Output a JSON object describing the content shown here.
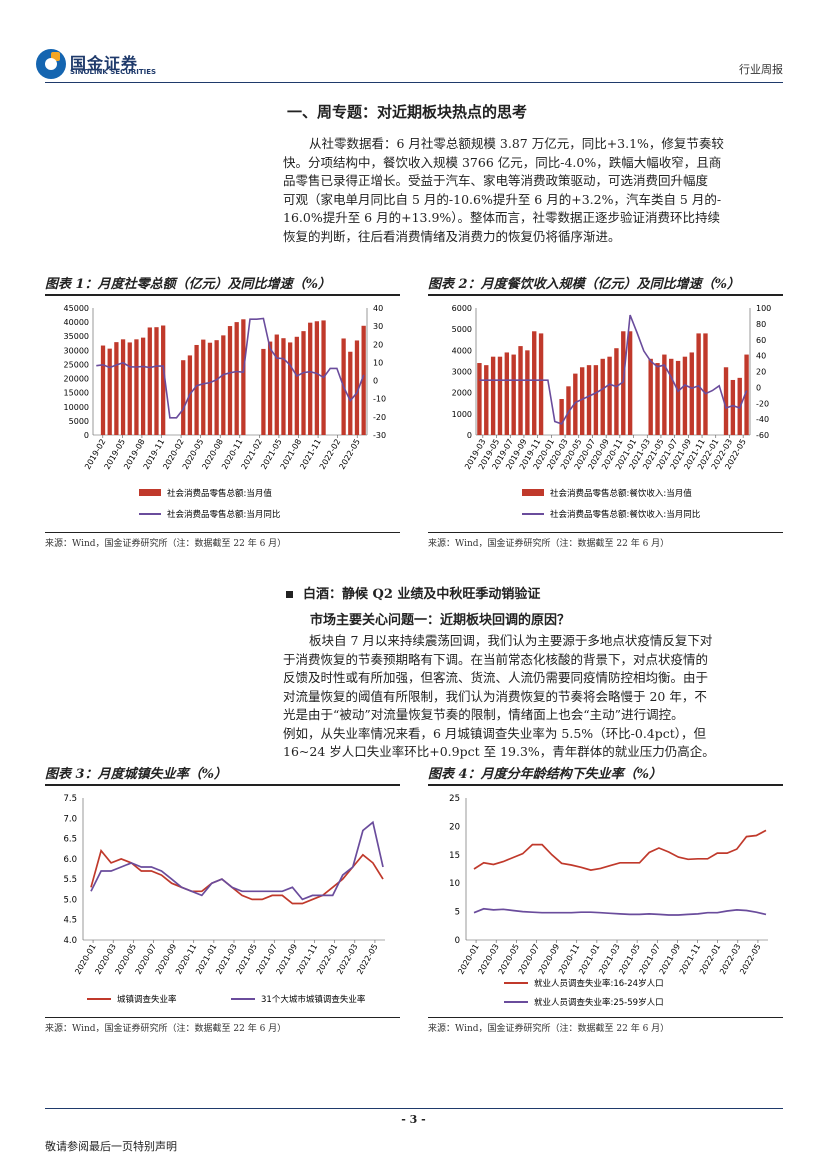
{
  "header": {
    "logo_cn": "国金证券",
    "logo_en": "SINOLINK SECURITIES",
    "report_type": "行业周报"
  },
  "section_title": "一、周专题：对近期板块热点的思考",
  "para1": [
    "从社零数据看：6 月社零总额规模 3.87 万亿元，同比+3.1%，修复节奏较",
    "快。分项结构中，餐饮收入规模 3766 亿元，同比-4.0%，跌幅大幅收窄，且商",
    "品零售已录得正增长。受益于汽车、家电等消费政策驱动，可选消费回升幅度",
    "可观（家电单月同比自 5 月的-10.6%提升至 6 月的+3.2%，汽车类自 5 月的-",
    "16.0%提升至 6 月的+13.9%）。整体而言，社零数据正逐步验证消费环比持续",
    "恢复的判断，往后看消费情绪及消费力的恢复仍将循序渐进。"
  ],
  "bullet_title": "白酒：静候 Q2 业绩及中秋旺季动销验证",
  "question_title": "市场主要关心问题一：近期板块回调的原因？",
  "para2": [
    "板块自 7 月以来持续震荡回调，我们认为主要源于多地点状疫情反复下对",
    "于消费恢复的节奏预期略有下调。在当前常态化核酸的背景下，对点状疫情的",
    "反馈及时性或有所加强，但客流、货流、人流仍需要同疫情防控相均衡。由于",
    "对流量恢复的阈值有所限制，我们认为消费恢复的节奏将会略慢于 20 年，不",
    "光是由于“被动”对流量恢复节奏的限制，情绪面上也会“主动”进行调控。",
    "例如，从失业率情况来看，6 月城镇调查失业率为 5.5%（环比-0.4pct），但",
    "16~24 岁人口失业率环比+0.9pct 至 19.3%，青年群体的就业压力仍高企。"
  ],
  "source_text": "来源：Wind，国金证券研究所（注：数据截至 22 年 6 月）",
  "footer": {
    "disclaimer": "敬请参阅最后一页特别声明",
    "page": "- 3 -"
  },
  "colors": {
    "bar": "#c0392b",
    "line": "#6a4c9c",
    "red_line": "#c0392b",
    "header_rule": "#1f3a6b"
  },
  "chart_data": [
    {
      "type": "bar",
      "title": "图表 1：月度社零总额（亿元）及同比增速（%）",
      "x_ticks": [
        "2019-02",
        "2019-05",
        "2019-08",
        "2019-11",
        "2020-02",
        "2020-05",
        "2020-08",
        "2020-11",
        "2021-02",
        "2021-05",
        "2021-08",
        "2021-11",
        "2022-02",
        "2022-05"
      ],
      "ylim_left": [
        0,
        45000
      ],
      "yticks_left": [
        "0",
        "5000",
        "10000",
        "15000",
        "20000",
        "25000",
        "30000",
        "35000",
        "40000",
        "45000"
      ],
      "ylim_right": [
        -30,
        40
      ],
      "yticks_right": [
        "-30",
        "-20",
        "-10",
        "0",
        "10",
        "20",
        "30",
        "40"
      ],
      "series": [
        {
          "name": "社会消费品零售总额:当月值",
          "axis": "left",
          "kind": "bar",
          "values": [
            null,
            31700,
            30600,
            32900,
            33900,
            32800,
            33900,
            34500,
            38100,
            38200,
            38800,
            null,
            null,
            26500,
            28200,
            31900,
            33800,
            32700,
            33600,
            35300,
            38600,
            40000,
            41000,
            null,
            null,
            30500,
            33100,
            35600,
            34300,
            32800,
            34800,
            36800,
            39800,
            40300,
            40600,
            null,
            null,
            34200,
            29500,
            33500,
            38700
          ],
          "categories": [
            "2019-02",
            "2019-03",
            "2019-04",
            "2019-05",
            "2019-06",
            "2019-07",
            "2019-08",
            "2019-09",
            "2019-10",
            "2019-11",
            "2019-12",
            "2020-01",
            "2020-02",
            "2020-03",
            "2020-04",
            "2020-05",
            "2020-06",
            "2020-07",
            "2020-08",
            "2020-09",
            "2020-10",
            "2020-11",
            "2020-12",
            "2021-01",
            "2021-02",
            "2021-03",
            "2021-04",
            "2021-05",
            "2021-06",
            "2021-07",
            "2021-08",
            "2021-09",
            "2021-10",
            "2021-11",
            "2021-12",
            "2022-01",
            "2022-02",
            "2022-03",
            "2022-04",
            "2022-05",
            "2022-06"
          ]
        },
        {
          "name": "社会消费品零售总额:当月同比",
          "axis": "right",
          "kind": "line",
          "values": [
            8.2,
            8.7,
            7.2,
            8.6,
            9.8,
            7.6,
            7.5,
            7.8,
            7.2,
            8.0,
            8.0,
            -20.5,
            -20.5,
            -15.8,
            -7.5,
            -2.8,
            -1.8,
            -1.1,
            0.5,
            3.3,
            4.3,
            5.0,
            4.6,
            33.8,
            33.8,
            34.2,
            17.7,
            12.4,
            12.1,
            8.5,
            2.5,
            4.4,
            4.9,
            3.9,
            1.7,
            6.7,
            6.7,
            -3.5,
            -11.1,
            -6.7,
            3.1
          ]
        }
      ],
      "legend": [
        "社会消费品零售总额:当月值",
        "社会消费品零售总额:当月同比"
      ]
    },
    {
      "type": "bar",
      "title": "图表 2：月度餐饮收入规模（亿元）及同比增速（%）",
      "x_ticks": [
        "2019-03",
        "2019-05",
        "2019-07",
        "2019-09",
        "2019-11",
        "2020-01",
        "2020-03",
        "2020-05",
        "2020-07",
        "2020-09",
        "2020-11",
        "2021-01",
        "2021-03",
        "2021-05",
        "2021-07",
        "2021-09",
        "2021-11",
        "2022-01",
        "2022-03",
        "2022-05"
      ],
      "ylim_left": [
        0,
        6000
      ],
      "yticks_left": [
        "0",
        "1000",
        "2000",
        "3000",
        "4000",
        "5000",
        "6000"
      ],
      "ylim_right": [
        -60,
        100
      ],
      "yticks_right": [
        "-60",
        "-40",
        "-20",
        "0",
        "20",
        "40",
        "60",
        "80",
        "100"
      ],
      "series": [
        {
          "name": "社会消费品零售总额:餐饮收入:当月值",
          "axis": "left",
          "kind": "bar",
          "values": [
            3400,
            3300,
            3700,
            3700,
            3900,
            3800,
            4200,
            4000,
            4900,
            4800,
            null,
            null,
            1700,
            2300,
            2900,
            3200,
            3300,
            3300,
            3600,
            3700,
            4100,
            4900,
            4900,
            null,
            null,
            3600,
            3400,
            3800,
            3600,
            3500,
            3700,
            3900,
            4800,
            4800,
            null,
            null,
            3200,
            2600,
            2700,
            3800
          ]
        },
        {
          "name": "社会消费品零售总额:餐饮收入:当月同比",
          "axis": "right",
          "kind": "line",
          "values": [
            9,
            9,
            9,
            9,
            9,
            9,
            9,
            9,
            9,
            9,
            9,
            -43,
            -46,
            -31,
            -19,
            -15,
            -11,
            -7,
            -2,
            4,
            1,
            7,
            91,
            69,
            46,
            33,
            26,
            28,
            13,
            -5,
            3,
            -1,
            2,
            -8,
            -4,
            2,
            -26,
            -23,
            -26,
            -4
          ]
        }
      ],
      "legend": [
        "社会消费品零售总额:餐饮收入:当月值",
        "社会消费品零售总额:餐饮收入:当月同比"
      ]
    },
    {
      "type": "line",
      "title": "图表 3：月度城镇失业率（%）",
      "x_ticks": [
        "2020-01",
        "2020-03",
        "2020-05",
        "2020-07",
        "2020-09",
        "2020-11",
        "2021-01",
        "2021-03",
        "2021-05",
        "2021-07",
        "2021-09",
        "2021-11",
        "2022-01",
        "2022-03",
        "2022-05"
      ],
      "ylim": [
        4.0,
        7.5
      ],
      "yticks": [
        "4.0",
        "4.5",
        "5.0",
        "5.5",
        "6.0",
        "6.5",
        "7.0",
        "7.5"
      ],
      "series": [
        {
          "name": "城镇调查失业率",
          "values": [
            5.3,
            6.2,
            5.9,
            6.0,
            5.9,
            5.7,
            5.7,
            5.6,
            5.4,
            5.3,
            5.2,
            5.2,
            5.4,
            5.5,
            5.3,
            5.1,
            5.0,
            5.0,
            5.1,
            5.1,
            4.9,
            4.9,
            5.0,
            5.1,
            5.3,
            5.5,
            5.8,
            6.1,
            5.9,
            5.5
          ]
        },
        {
          "name": "31个大城市城镇调查失业率",
          "values": [
            5.2,
            5.7,
            5.7,
            5.8,
            5.9,
            5.8,
            5.8,
            5.7,
            5.5,
            5.3,
            5.2,
            5.1,
            5.4,
            5.5,
            5.3,
            5.2,
            5.2,
            5.2,
            5.2,
            5.2,
            5.3,
            5.0,
            5.1,
            5.1,
            5.1,
            5.6,
            5.8,
            6.7,
            6.9,
            5.8
          ]
        }
      ],
      "legend": [
        "城镇调查失业率",
        "31个大城市城镇调查失业率"
      ]
    },
    {
      "type": "line",
      "title": "图表 4：月度分年龄结构下失业率（%）",
      "x_ticks": [
        "2020-01",
        "2020-03",
        "2020-05",
        "2020-07",
        "2020-09",
        "2020-11",
        "2021-01",
        "2021-03",
        "2021-05",
        "2021-07",
        "2021-09",
        "2021-11",
        "2022-01",
        "2022-03",
        "2022-05"
      ],
      "ylim": [
        0,
        25
      ],
      "yticks": [
        "0",
        "5",
        "10",
        "15",
        "20",
        "25"
      ],
      "series": [
        {
          "name": "就业人员调查失业率:16-24岁人口",
          "values": [
            12.5,
            13.6,
            13.3,
            13.8,
            14.5,
            15.2,
            16.8,
            16.8,
            15.0,
            13.5,
            13.2,
            12.8,
            12.3,
            12.6,
            13.1,
            13.6,
            13.6,
            13.6,
            15.4,
            16.2,
            15.5,
            14.6,
            14.2,
            14.3,
            14.3,
            15.3,
            15.3,
            16.0,
            18.2,
            18.4,
            19.3
          ]
        },
        {
          "name": "就业人员调查失业率:25-59岁人口",
          "values": [
            4.8,
            5.5,
            5.3,
            5.4,
            5.2,
            5.0,
            4.9,
            4.8,
            4.8,
            4.8,
            4.8,
            4.9,
            4.9,
            4.8,
            4.7,
            4.6,
            4.5,
            4.5,
            4.6,
            4.5,
            4.4,
            4.4,
            4.5,
            4.6,
            4.8,
            4.8,
            5.1,
            5.3,
            5.2,
            4.9,
            4.5
          ]
        }
      ],
      "legend": [
        "就业人员调查失业率:16-24岁人口",
        "就业人员调查失业率:25-59岁人口"
      ]
    }
  ]
}
